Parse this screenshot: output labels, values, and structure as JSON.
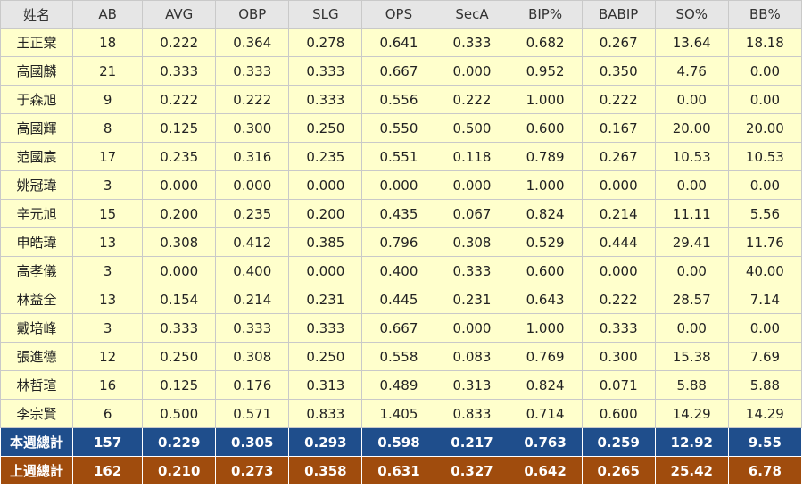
{
  "table": {
    "headers": [
      "姓名",
      "AB",
      "AVG",
      "OBP",
      "SLG",
      "OPS",
      "SecA",
      "BIP%",
      "BABIP",
      "SO%",
      "BB%"
    ],
    "rows": [
      [
        "王正棠",
        "18",
        "0.222",
        "0.364",
        "0.278",
        "0.641",
        "0.333",
        "0.682",
        "0.267",
        "13.64",
        "18.18"
      ],
      [
        "高國麟",
        "21",
        "0.333",
        "0.333",
        "0.333",
        "0.667",
        "0.000",
        "0.952",
        "0.350",
        "4.76",
        "0.00"
      ],
      [
        "于森旭",
        "9",
        "0.222",
        "0.222",
        "0.333",
        "0.556",
        "0.222",
        "1.000",
        "0.222",
        "0.00",
        "0.00"
      ],
      [
        "高國輝",
        "8",
        "0.125",
        "0.300",
        "0.250",
        "0.550",
        "0.500",
        "0.600",
        "0.167",
        "20.00",
        "20.00"
      ],
      [
        "范國宸",
        "17",
        "0.235",
        "0.316",
        "0.235",
        "0.551",
        "0.118",
        "0.789",
        "0.267",
        "10.53",
        "10.53"
      ],
      [
        "姚冠瑋",
        "3",
        "0.000",
        "0.000",
        "0.000",
        "0.000",
        "0.000",
        "1.000",
        "0.000",
        "0.00",
        "0.00"
      ],
      [
        "辛元旭",
        "15",
        "0.200",
        "0.235",
        "0.200",
        "0.435",
        "0.067",
        "0.824",
        "0.214",
        "11.11",
        "5.56"
      ],
      [
        "申皓瑋",
        "13",
        "0.308",
        "0.412",
        "0.385",
        "0.796",
        "0.308",
        "0.529",
        "0.444",
        "29.41",
        "11.76"
      ],
      [
        "高孝儀",
        "3",
        "0.000",
        "0.400",
        "0.000",
        "0.400",
        "0.333",
        "0.600",
        "0.000",
        "0.00",
        "40.00"
      ],
      [
        "林益全",
        "13",
        "0.154",
        "0.214",
        "0.231",
        "0.445",
        "0.231",
        "0.643",
        "0.222",
        "28.57",
        "7.14"
      ],
      [
        "戴培峰",
        "3",
        "0.333",
        "0.333",
        "0.333",
        "0.667",
        "0.000",
        "1.000",
        "0.333",
        "0.00",
        "0.00"
      ],
      [
        "張進德",
        "12",
        "0.250",
        "0.308",
        "0.250",
        "0.558",
        "0.083",
        "0.769",
        "0.300",
        "15.38",
        "7.69"
      ],
      [
        "林哲瑄",
        "16",
        "0.125",
        "0.176",
        "0.313",
        "0.489",
        "0.313",
        "0.824",
        "0.071",
        "5.88",
        "5.88"
      ],
      [
        "李宗賢",
        "6",
        "0.500",
        "0.571",
        "0.833",
        "1.405",
        "0.833",
        "0.714",
        "0.600",
        "14.29",
        "14.29"
      ]
    ],
    "this_week_total": [
      "本週總計",
      "157",
      "0.229",
      "0.305",
      "0.293",
      "0.598",
      "0.217",
      "0.763",
      "0.259",
      "12.92",
      "9.55"
    ],
    "last_week_total": [
      "上週總計",
      "162",
      "0.210",
      "0.273",
      "0.358",
      "0.631",
      "0.327",
      "0.642",
      "0.265",
      "25.42",
      "6.78"
    ]
  },
  "colors": {
    "header_bg": "#e6e6e6",
    "row_bg": "#ffffcc",
    "this_week_bg": "#1f4e8c",
    "last_week_bg": "#a04c0d"
  }
}
